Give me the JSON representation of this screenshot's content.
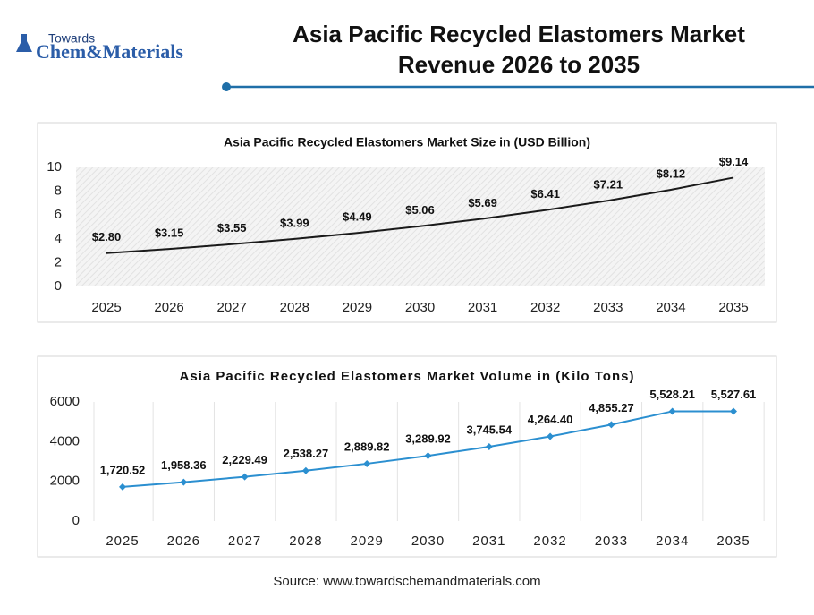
{
  "header": {
    "logo_top": "Towards",
    "logo_main": "Chem&Materials"
  },
  "title": "Asia Pacific Recycled Elastomers Market Revenue 2026 to 2035",
  "source": "Source: www.towardschemandmaterials.com",
  "chart_data": [
    {
      "type": "line",
      "title": "Asia Pacific Recycled Elastomers Market Size in (USD Billion)",
      "categories": [
        "2025",
        "2026",
        "2027",
        "2028",
        "2029",
        "2030",
        "2031",
        "2032",
        "2033",
        "2034",
        "2035"
      ],
      "values": [
        2.8,
        3.15,
        3.55,
        3.99,
        4.49,
        5.06,
        5.69,
        6.41,
        7.21,
        8.12,
        9.14
      ],
      "value_labels": [
        "$2.80",
        "$3.15",
        "$3.55",
        "$3.99",
        "$4.49",
        "$5.06",
        "$5.69",
        "$6.41",
        "$7.21",
        "$8.12",
        "$9.14"
      ],
      "color": "#1a1a1a",
      "ylim": [
        0,
        10
      ],
      "yticks": [
        0,
        2,
        4,
        6,
        8,
        10
      ],
      "markers": false,
      "vertical_grid": false
    },
    {
      "type": "line",
      "title": "Asia Pacific Recycled Elastomers Market Volume in (Kilo Tons)",
      "categories": [
        "2025",
        "2026",
        "2027",
        "2028",
        "2029",
        "2030",
        "2031",
        "2032",
        "2033",
        "2034",
        "2035"
      ],
      "values": [
        1720.52,
        1958.36,
        2229.49,
        2538.27,
        2889.82,
        3289.92,
        3745.54,
        4264.4,
        4855.27,
        5528.21,
        5527.61
      ],
      "value_labels": [
        "1,720.52",
        "1,958.36",
        "2,229.49",
        "2,538.27",
        "2,889.82",
        "3,289.92",
        "3,745.54",
        "4,264.40",
        "4,855.27",
        "5,528.21",
        "5,527.61"
      ],
      "color": "#2b8fd0",
      "ylim": [
        0,
        6000
      ],
      "yticks": [
        0,
        2000,
        4000,
        6000
      ],
      "markers": true,
      "vertical_grid": true
    }
  ]
}
